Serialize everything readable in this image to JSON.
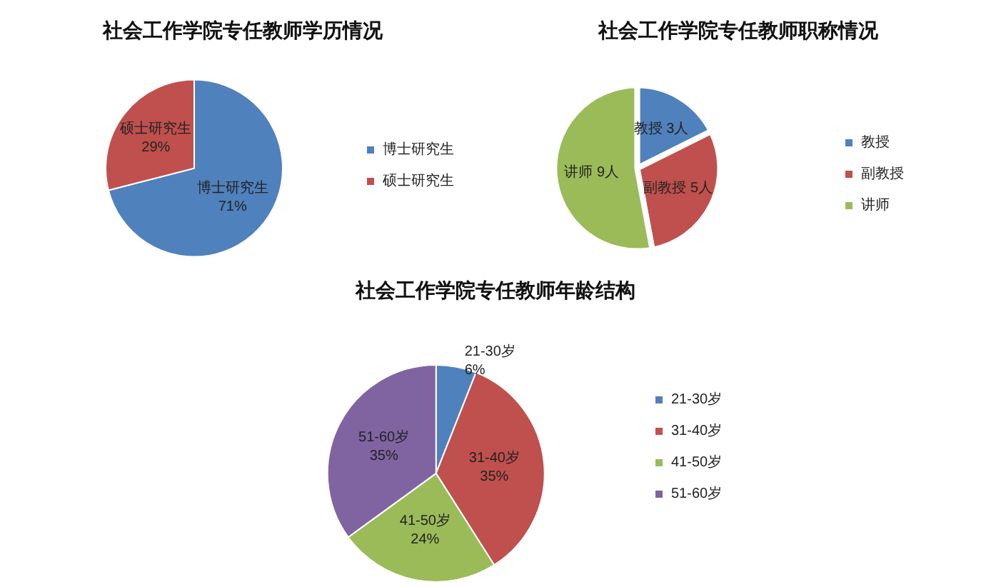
{
  "chart_data": [
    {
      "type": "pie",
      "title": "社会工作学院专任教师学历情况",
      "categories": [
        "博士研究生",
        "硕士研究生"
      ],
      "values": [
        71,
        29
      ],
      "value_labels": [
        "71%",
        "29%"
      ],
      "colors": [
        "#4f81bd",
        "#c0504d"
      ],
      "legend": "right"
    },
    {
      "type": "pie",
      "title": "社会工作学院专任教师职称情况",
      "categories": [
        "教授",
        "副教授",
        "讲师"
      ],
      "values": [
        3,
        5,
        9
      ],
      "value_labels": [
        "3人",
        "5人",
        "9人"
      ],
      "colors": [
        "#4f81bd",
        "#c0504d",
        "#9bbb59"
      ],
      "legend": "right"
    },
    {
      "type": "pie",
      "title": "社会工作学院专任教师年龄结构",
      "categories": [
        "21-30岁",
        "31-40岁",
        "41-50岁",
        "51-60岁"
      ],
      "values": [
        6,
        35,
        24,
        35
      ],
      "value_labels": [
        "6%",
        "35%",
        "24%",
        "35%"
      ],
      "colors": [
        "#4f81bd",
        "#c0504d",
        "#9bbb59",
        "#8064a2"
      ],
      "legend": "right"
    }
  ]
}
